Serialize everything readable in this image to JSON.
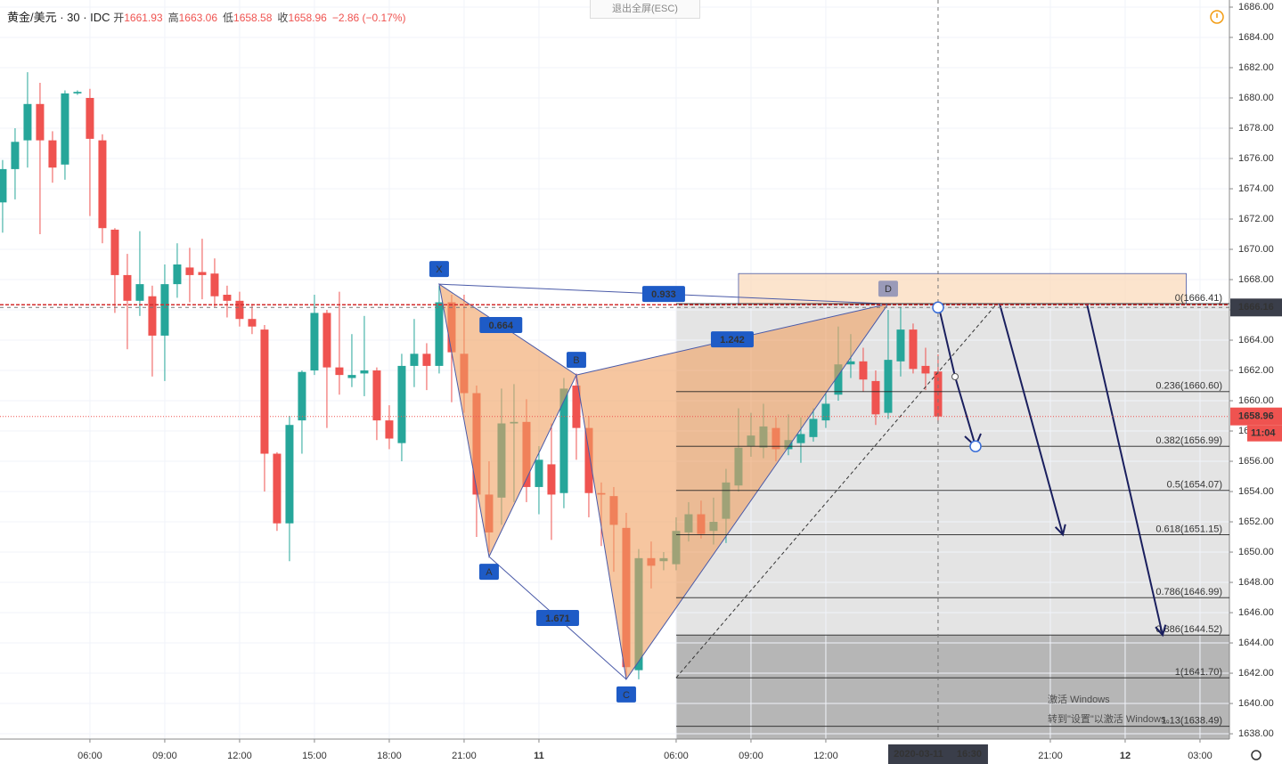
{
  "chart_data": {
    "type": "candlestick",
    "header": {
      "symbol": "黄金/美元 · 30 · IDC",
      "stats": [
        {
          "label": "开",
          "value": 1661.93
        },
        {
          "label": "高",
          "value": 1663.06
        },
        {
          "label": "低",
          "value": 1658.58
        },
        {
          "label": "收",
          "value": 1658.96
        }
      ],
      "change": "−2.86 (−0.17%)"
    },
    "button": "退出全屏(ESC)",
    "watermark": [
      "激活 Windows",
      "转到\"设置\"以激活 Windows。"
    ],
    "up_color": "#26a69a",
    "down_color": "#ef5350",
    "open": [
      1673.1,
      1675.3,
      1677.2,
      1679.6,
      1677.2,
      1675.6,
      1680.3,
      1680.0,
      1677.2,
      1671.3,
      1668.3,
      1666.6,
      1666.9,
      1664.3,
      1667.7,
      1668.8,
      1668.5,
      1668.4,
      1667.0,
      1666.6,
      1665.4,
      1664.7,
      1656.5,
      1651.9,
      1658.7,
      1662.0,
      1665.8,
      1662.2,
      1661.5,
      1661.8,
      1662.0,
      1658.7,
      1657.2,
      1662.3,
      1663.1,
      1662.3,
      1666.5,
      1663.1,
      1660.5,
      1653.8,
      1653.6,
      1658.5,
      1658.6,
      1654.3,
      1655.8,
      1653.9,
      1661.0,
      1658.2,
      1653.9,
      1653.7,
      1651.6,
      1642.2,
      1649.6,
      1649.4,
      1649.2,
      1651.3,
      1652.5,
      1651.4,
      1652.2,
      1654.4,
      1657.0,
      1656.9,
      1658.2,
      1656.8,
      1657.2,
      1657.6,
      1658.7,
      1660.4,
      1662.4,
      1662.6,
      1661.3,
      1659.2,
      1662.6,
      1664.7,
      1662.3,
      1661.93
    ],
    "high": [
      1675.9,
      1678.0,
      1681.7,
      1681.0,
      1677.8,
      1680.5,
      1680.5,
      1680.6,
      1677.6,
      1671.4,
      1669.7,
      1671.2,
      1667.6,
      1669.0,
      1670.4,
      1670.1,
      1670.7,
      1669.4,
      1667.6,
      1667.2,
      1666.4,
      1665.0,
      1656.6,
      1659.0,
      1662.0,
      1667.0,
      1666.0,
      1667.2,
      1664.4,
      1665.6,
      1662.2,
      1659.7,
      1663.1,
      1665.4,
      1663.8,
      1667.6,
      1667.0,
      1667.0,
      1661.0,
      1656.0,
      1660.8,
      1661.1,
      1660.1,
      1657.0,
      1658.5,
      1661.5,
      1661.8,
      1659.0,
      1654.6,
      1654.3,
      1652.6,
      1650.2,
      1650.7,
      1650.0,
      1652.3,
      1653.3,
      1653.4,
      1653.6,
      1655.5,
      1659.5,
      1659.2,
      1659.8,
      1658.9,
      1659.1,
      1658.9,
      1659.5,
      1660.5,
      1664.9,
      1664.4,
      1663.5,
      1662.0,
      1666.0,
      1666.2,
      1665.1,
      1663.5,
      1663.06
    ],
    "low": [
      1671.1,
      1673.3,
      1675.4,
      1671.0,
      1674.4,
      1674.6,
      1680.2,
      1672.2,
      1670.4,
      1665.8,
      1663.4,
      1665.6,
      1661.6,
      1661.3,
      1666.8,
      1666.5,
      1666.7,
      1666.2,
      1665.5,
      1664.9,
      1664.4,
      1654.0,
      1651.4,
      1649.4,
      1656.5,
      1661.7,
      1658.2,
      1660.4,
      1660.9,
      1660.3,
      1657.4,
      1656.8,
      1656.0,
      1660.9,
      1660.7,
      1661.8,
      1659.9,
      1659.2,
      1651.0,
      1650.0,
      1651.8,
      1653.3,
      1653.3,
      1652.5,
      1650.8,
      1652.9,
      1656.1,
      1652.3,
      1650.4,
      1648.7,
      1641.8,
      1641.6,
      1647.6,
      1648.8,
      1648.8,
      1650.7,
      1650.9,
      1650.5,
      1650.6,
      1654.0,
      1656.3,
      1656.2,
      1656.0,
      1656.4,
      1655.9,
      1657.3,
      1658.2,
      1660.0,
      1661.5,
      1660.6,
      1658.4,
      1658.8,
      1661.6,
      1661.8,
      1660.7,
      1658.58
    ],
    "close": [
      1675.3,
      1677.1,
      1679.6,
      1677.2,
      1675.4,
      1680.3,
      1680.4,
      1677.3,
      1671.4,
      1668.3,
      1666.6,
      1667.7,
      1664.3,
      1667.7,
      1669.0,
      1668.3,
      1668.3,
      1666.9,
      1666.6,
      1665.4,
      1664.9,
      1656.5,
      1651.9,
      1658.4,
      1661.9,
      1665.8,
      1662.2,
      1661.7,
      1661.7,
      1662.0,
      1658.7,
      1657.5,
      1662.3,
      1663.1,
      1662.3,
      1666.5,
      1663.2,
      1660.5,
      1653.8,
      1651.3,
      1658.5,
      1658.6,
      1654.3,
      1656.1,
      1653.8,
      1660.8,
      1658.2,
      1653.9,
      1653.8,
      1651.8,
      1642.4,
      1649.6,
      1649.1,
      1649.6,
      1651.4,
      1652.5,
      1651.2,
      1652.0,
      1654.6,
      1656.9,
      1657.7,
      1658.3,
      1656.8,
      1657.4,
      1657.8,
      1658.8,
      1659.8,
      1662.4,
      1662.6,
      1661.4,
      1659.1,
      1662.7,
      1664.7,
      1662.1,
      1661.8,
      1658.96
    ],
    "xlim": [
      -0.21,
      98.36
    ],
    "ylim": [
      1637.65,
      1686.47
    ],
    "xticks": [
      {
        "value": 7,
        "label": "06:00"
      },
      {
        "value": 13,
        "label": "09:00"
      },
      {
        "value": 19,
        "label": "12:00"
      },
      {
        "value": 25,
        "label": "15:00"
      },
      {
        "value": 31,
        "label": "18:00"
      },
      {
        "value": 37,
        "label": "21:00"
      },
      {
        "value": 43,
        "label": "11"
      },
      {
        "value": 54,
        "label": "06:00"
      },
      {
        "value": 60,
        "label": "09:00"
      },
      {
        "value": 66,
        "label": "12:00"
      },
      {
        "value": 84,
        "label": "21:00"
      },
      {
        "value": 90,
        "label": "12"
      },
      {
        "value": 96,
        "label": "03:00"
      }
    ],
    "yticks": [
      {
        "value": 1638,
        "label": "1638.00"
      },
      {
        "value": 1640,
        "label": "1640.00"
      },
      {
        "value": 1642,
        "label": "1642.00"
      },
      {
        "value": 1644,
        "label": "1644.00"
      },
      {
        "value": 1646,
        "label": "1646.00"
      },
      {
        "value": 1648,
        "label": "1648.00"
      },
      {
        "value": 1650,
        "label": "1650.00"
      },
      {
        "value": 1652,
        "label": "1652.00"
      },
      {
        "value": 1654,
        "label": "1654.00"
      },
      {
        "value": 1656,
        "label": "1656.00"
      },
      {
        "value": 1658,
        "label": "1658.00"
      },
      {
        "value": 1660,
        "label": "1660.00"
      },
      {
        "value": 1662,
        "label": "1662.00"
      },
      {
        "value": 1664,
        "label": "1664.00"
      },
      {
        "value": 1666,
        "label": "1666.00"
      },
      {
        "value": 1668,
        "label": "1668.00"
      },
      {
        "value": 1670,
        "label": "1670.00"
      },
      {
        "value": 1672,
        "label": "1672.00"
      },
      {
        "value": 1674,
        "label": "1674.00"
      },
      {
        "value": 1676,
        "label": "1676.00"
      },
      {
        "value": 1678,
        "label": "1678.00"
      },
      {
        "value": 1680,
        "label": "1680.00"
      },
      {
        "value": 1682,
        "label": "1682.00"
      },
      {
        "value": 1684,
        "label": "1684.00"
      },
      {
        "value": 1686,
        "label": "1686.00"
      }
    ],
    "grid": true,
    "pattern": {
      "points": [
        {
          "label": "X",
          "index": 35,
          "value": 1667.7
        },
        {
          "label": "A",
          "index": 39,
          "value": 1649.7
        },
        {
          "label": "B",
          "index": 46,
          "value": 1661.7
        },
        {
          "label": "C",
          "index": 50,
          "value": 1641.6
        },
        {
          "label": "D",
          "index": 71,
          "value": 1666.4
        }
      ],
      "ratios": [
        0.933,
        0.664,
        1.242,
        1.671
      ],
      "color": "#f0a060"
    },
    "fib": {
      "start": 54,
      "levels": [
        {
          "value": 1666.41,
          "label": "0(1666.41)"
        },
        {
          "value": 1660.6,
          "label": "0.236(1660.60)"
        },
        {
          "value": 1656.99,
          "label": "0.382(1656.99)"
        },
        {
          "value": 1654.07,
          "label": "0.5(1654.07)"
        },
        {
          "value": 1651.15,
          "label": "0.618(1651.15)"
        },
        {
          "value": 1646.99,
          "label": "0.786(1646.99)"
        },
        {
          "value": 1644.52,
          "label": "0.886(1644.52)"
        },
        {
          "value": 1641.7,
          "label": "1(1641.70)"
        },
        {
          "value": 1638.49,
          "label": "1.13(1638.49)"
        }
      ]
    },
    "zone": {
      "start": 59,
      "end": 94.9,
      "from": 1666.4,
      "to": 1668.4
    },
    "crosshair": {
      "index": 75,
      "price": {
        "value": 1666.16,
        "label": "1666.16"
      },
      "date": "2020-03-11",
      "time": "16:30"
    },
    "last_price": {
      "value": 1658.96,
      "label": "1658.96",
      "countdown": "11:04"
    }
  }
}
